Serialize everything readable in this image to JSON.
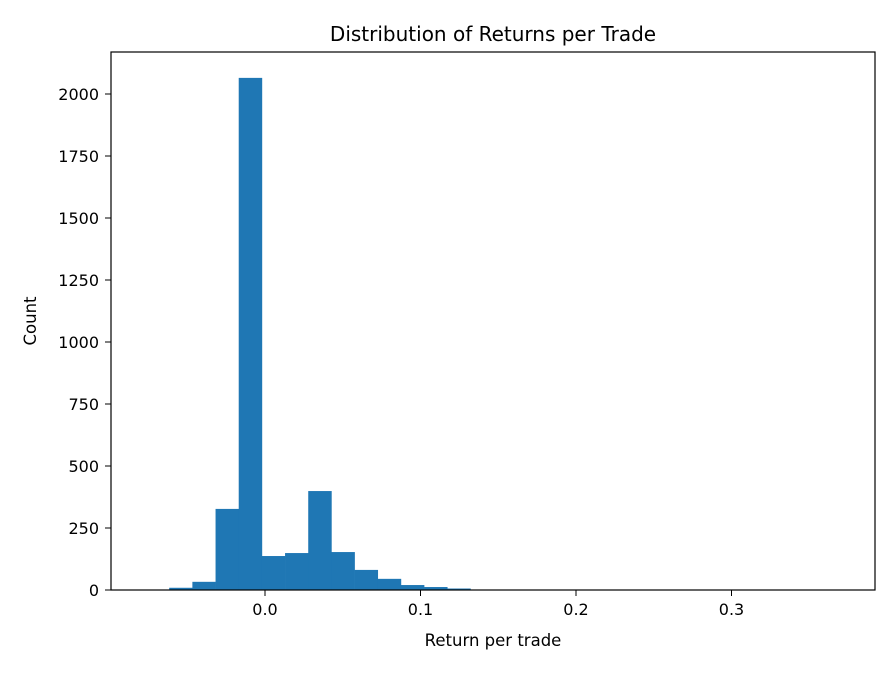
{
  "chart_data": {
    "type": "bar",
    "title": "Distribution of Returns per Trade",
    "xlabel": "Return per trade",
    "ylabel": "Count",
    "xlim": [
      -0.1,
      0.39
    ],
    "ylim": [
      0,
      2168
    ],
    "xticks": [
      0.0,
      0.1,
      0.2,
      0.3
    ],
    "xtick_labels": [
      "0.0",
      "0.1",
      "0.2",
      "0.3"
    ],
    "yticks": [
      0,
      250,
      500,
      750,
      1000,
      1250,
      1500,
      1750,
      2000
    ],
    "ytick_labels": [
      "0",
      "250",
      "500",
      "750",
      "1000",
      "1250",
      "1500",
      "1750",
      "2000"
    ],
    "bin_start": -0.0765,
    "bin_width": 0.0149,
    "values": [
      1,
      9,
      33,
      327,
      2065,
      137,
      149,
      399,
      153,
      81,
      45,
      20,
      12,
      6,
      2,
      1,
      1,
      0,
      1,
      0,
      0,
      1,
      0,
      0,
      0,
      0,
      0,
      1,
      0,
      1
    ],
    "grid": false,
    "color": "#1f77b4"
  }
}
